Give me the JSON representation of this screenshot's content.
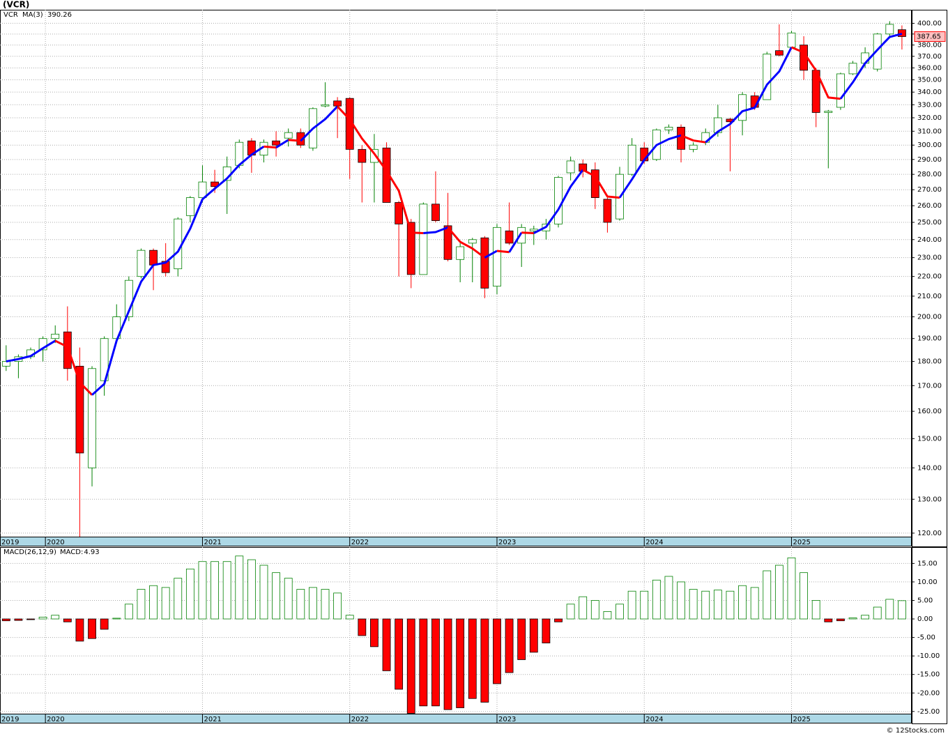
{
  "title": "(VCR)",
  "footer": "© 12Stocks.com",
  "chart_data": [
    {
      "type": "candlestick",
      "symbol": "VCR",
      "ma_name": "MA(3)",
      "log_scale": true,
      "grid": true,
      "up_color": "#008000",
      "down_color": "#ff0000",
      "ma_up_color": "#0000ff",
      "ma_down_color": "#ff0000",
      "open": [
        178,
        180,
        182,
        185,
        190,
        193,
        178,
        140,
        172,
        190,
        200,
        220,
        234,
        228,
        224,
        254,
        265,
        275,
        276,
        286,
        303,
        293,
        303,
        305,
        309,
        298,
        329,
        333,
        335,
        297,
        288,
        298,
        262,
        250,
        221,
        261,
        248,
        229,
        238,
        241,
        215,
        245,
        238,
        245,
        245,
        249,
        281,
        287,
        283,
        264,
        252,
        280,
        298,
        290,
        311,
        313,
        297,
        302,
        309,
        319,
        318,
        337,
        334,
        375,
        378,
        380,
        358,
        324,
        328,
        355,
        364,
        359,
        390,
        394
      ],
      "high": [
        187,
        183,
        186,
        191,
        196,
        205,
        186,
        178,
        191,
        206,
        220,
        235,
        235,
        238,
        253,
        266,
        286,
        283,
        292,
        304,
        305,
        304,
        310,
        312,
        312,
        328,
        348,
        336,
        336,
        300,
        308,
        302,
        263,
        252,
        262,
        282,
        268,
        238,
        241,
        242,
        249,
        262,
        249,
        248,
        252,
        279,
        292,
        290,
        288,
        265,
        285,
        305,
        302,
        312,
        315,
        315,
        302,
        312,
        330,
        320,
        340,
        340,
        374,
        399,
        393,
        388,
        360,
        326,
        356,
        366,
        378,
        391,
        402,
        398
      ],
      "low": [
        176,
        173,
        181,
        180,
        188,
        172,
        119,
        134,
        166,
        188,
        198,
        219,
        213,
        220,
        220,
        250,
        262,
        268,
        255,
        284,
        281,
        288,
        292,
        299,
        298,
        296,
        328,
        305,
        277,
        262,
        262,
        262,
        220,
        214,
        221,
        250,
        228,
        217,
        217,
        209,
        211,
        237,
        225,
        237,
        240,
        247,
        276,
        278,
        258,
        244,
        251,
        279,
        287,
        289,
        308,
        288,
        295,
        300,
        306,
        282,
        307,
        326,
        334,
        370,
        377,
        350,
        313,
        284,
        326,
        354,
        360,
        357,
        388,
        376
      ],
      "close": [
        180,
        182,
        185,
        190,
        192,
        177,
        145,
        177,
        190,
        200,
        218,
        234,
        226,
        222,
        252,
        265,
        275,
        272,
        285,
        302,
        293,
        302,
        300,
        309,
        300,
        327,
        330,
        329,
        297,
        288,
        297,
        262,
        249,
        221,
        261,
        251,
        229,
        236,
        240,
        214,
        247,
        238,
        247,
        246,
        249,
        278,
        289,
        282,
        265,
        250,
        280,
        300,
        289,
        311,
        313,
        297,
        300,
        309,
        320,
        317,
        338,
        328,
        372,
        371,
        391,
        358,
        324,
        325,
        355,
        364,
        373,
        390,
        399,
        387.65
      ],
      "ma": [
        180,
        181,
        182.3,
        185.7,
        189,
        186.3,
        171.3,
        166.3,
        170.7,
        189,
        202.7,
        217.3,
        226,
        227.3,
        233.3,
        246.3,
        264,
        270.7,
        277.3,
        286.3,
        293.3,
        299,
        298.3,
        303.7,
        303,
        312,
        319,
        328.7,
        318.7,
        304.7,
        294,
        282.3,
        269.3,
        244,
        243.7,
        244.3,
        247,
        238.7,
        235,
        230,
        233.7,
        233,
        244,
        243.7,
        247.3,
        257.7,
        272,
        283,
        278.7,
        265.7,
        265,
        276.7,
        289.7,
        300,
        304.3,
        307,
        303.3,
        302,
        309.7,
        315.3,
        325,
        327.7,
        346,
        357,
        378,
        373.3,
        357.7,
        335.7,
        334.7,
        348,
        364,
        375.7,
        387.3,
        390.26
      ],
      "ylim": [
        119,
        413
      ],
      "yticks": [
        {
          "value": 400,
          "label": "400.00"
        },
        {
          "value": 390,
          "label": "390.00"
        },
        {
          "value": 380,
          "label": "380.00"
        },
        {
          "value": 370,
          "label": "370.00"
        },
        {
          "value": 360,
          "label": "360.00"
        },
        {
          "value": 350,
          "label": "350.00"
        },
        {
          "value": 340,
          "label": "340.00"
        },
        {
          "value": 330,
          "label": "330.00"
        },
        {
          "value": 320,
          "label": "320.00"
        },
        {
          "value": 310,
          "label": "310.00"
        },
        {
          "value": 300,
          "label": "300.00"
        },
        {
          "value": 290,
          "label": "290.00"
        },
        {
          "value": 280,
          "label": "280.00"
        },
        {
          "value": 270,
          "label": "270.00"
        },
        {
          "value": 260,
          "label": "260.00"
        },
        {
          "value": 250,
          "label": "250.00"
        },
        {
          "value": 240,
          "label": "240.00"
        },
        {
          "value": 230,
          "label": "230.00"
        },
        {
          "value": 220,
          "label": "220.00"
        },
        {
          "value": 210,
          "label": "210.00"
        },
        {
          "value": 200,
          "label": "200.00"
        },
        {
          "value": 190,
          "label": "190.00"
        },
        {
          "value": 180,
          "label": "180.00"
        },
        {
          "value": 170,
          "label": "170.00"
        },
        {
          "value": 160,
          "label": "160.00"
        },
        {
          "value": 150,
          "label": "150.00"
        },
        {
          "value": 140,
          "label": "140.00"
        },
        {
          "value": 130,
          "label": "130.00"
        },
        {
          "value": 120,
          "label": "120.00"
        }
      ],
      "xlim": [
        -0.5,
        73.8
      ],
      "xticks": [
        {
          "value": -8.8,
          "label": "2019"
        },
        {
          "value": 3.2,
          "label": "2020"
        },
        {
          "value": 16,
          "label": "2021"
        },
        {
          "value": 28,
          "label": "2022"
        },
        {
          "value": 40,
          "label": "2023"
        },
        {
          "value": 52,
          "label": "2024"
        },
        {
          "value": 64,
          "label": "2025"
        }
      ]
    },
    {
      "type": "bar",
      "name": "MACD(26,12,9)",
      "value_name": "MACD:",
      "grid": true,
      "up_color": "#008000",
      "down_color": "#ff0000",
      "values": [
        -0.5,
        -0.4,
        -0.2,
        0.5,
        1.0,
        -0.8,
        -6.0,
        -5.3,
        -2.8,
        0.2,
        4.0,
        8.0,
        9.0,
        8.5,
        11.0,
        13.5,
        15.5,
        15.5,
        15.5,
        17.0,
        16.0,
        14.5,
        12.5,
        11.0,
        8.0,
        8.5,
        8.0,
        7.0,
        1.0,
        -4.5,
        -7.5,
        -14.0,
        -19.0,
        -25.5,
        -23.5,
        -23.5,
        -24.5,
        -24.0,
        -21.5,
        -22.5,
        -17.5,
        -14.5,
        -11.0,
        -9.0,
        -6.5,
        -0.8,
        4.0,
        6.0,
        5.0,
        2.0,
        4.0,
        7.5,
        7.5,
        10.5,
        11.5,
        10.0,
        8.0,
        7.5,
        7.8,
        7.5,
        9.0,
        8.5,
        13.0,
        14.5,
        16.5,
        12.5,
        5.0,
        -0.8,
        -0.5,
        0.3,
        1.0,
        3.2,
        5.3,
        4.93
      ],
      "ylim": [
        -25.6,
        19.4
      ],
      "yticks": [
        {
          "value": 15,
          "label": "15.00"
        },
        {
          "value": 10,
          "label": "10.00"
        },
        {
          "value": 5,
          "label": "5.00"
        },
        {
          "value": 0,
          "label": "0.00"
        },
        {
          "value": -5,
          "label": "-5.00"
        },
        {
          "value": -10,
          "label": "-10.00"
        },
        {
          "value": -15,
          "label": "-15.00"
        },
        {
          "value": -20,
          "label": "-20.00"
        },
        {
          "value": -25,
          "label": "-25.00"
        }
      ],
      "xlim": [
        -0.5,
        73.8
      ],
      "xticks": [
        {
          "value": -8.8,
          "label": "2019"
        },
        {
          "value": 3.2,
          "label": "2020"
        },
        {
          "value": 16,
          "label": "2021"
        },
        {
          "value": 28,
          "label": "2022"
        },
        {
          "value": 40,
          "label": "2023"
        },
        {
          "value": 52,
          "label": "2024"
        },
        {
          "value": 64,
          "label": "2025"
        }
      ]
    }
  ]
}
